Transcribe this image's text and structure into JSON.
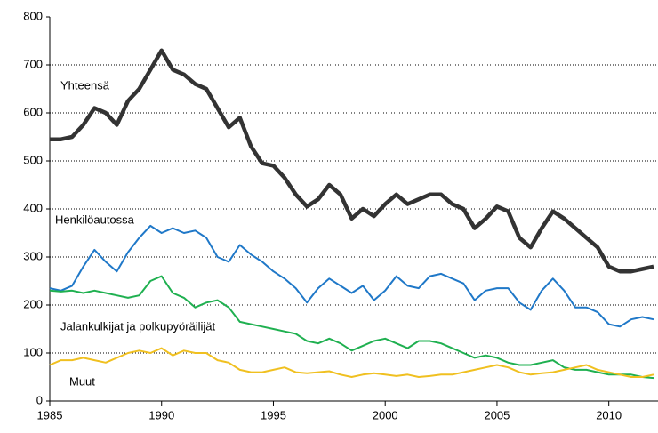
{
  "chart_data": {
    "type": "line",
    "x": [
      1985,
      1985.5,
      1986,
      1986.5,
      1987,
      1987.5,
      1988,
      1988.5,
      1989,
      1989.5,
      1990,
      1990.5,
      1991,
      1991.5,
      1992,
      1992.5,
      1993,
      1993.5,
      1994,
      1994.5,
      1995,
      1995.5,
      1996,
      1996.5,
      1997,
      1997.5,
      1998,
      1998.5,
      1999,
      1999.5,
      2000,
      2000.5,
      2001,
      2001.5,
      2002,
      2002.5,
      2003,
      2003.5,
      2004,
      2004.5,
      2005,
      2005.5,
      2006,
      2006.5,
      2007,
      2007.5,
      2008,
      2008.5,
      2009,
      2009.5,
      2010,
      2010.5,
      2011,
      2011.5,
      2012
    ],
    "series": [
      {
        "name": "Yhteensä",
        "color": "#333333",
        "values": [
          545,
          545,
          550,
          575,
          610,
          600,
          575,
          625,
          650,
          690,
          730,
          690,
          680,
          660,
          650,
          610,
          570,
          590,
          530,
          495,
          490,
          465,
          430,
          405,
          420,
          450,
          430,
          380,
          400,
          385,
          410,
          430,
          410,
          420,
          430,
          430,
          410,
          400,
          360,
          380,
          405,
          395,
          340,
          320,
          360,
          395,
          380,
          360,
          340,
          320,
          280,
          270,
          270,
          275,
          280
        ]
      },
      {
        "name": "Henkilöautossa",
        "color": "#1f78c8",
        "values": [
          235,
          230,
          240,
          280,
          315,
          290,
          270,
          310,
          340,
          365,
          350,
          360,
          350,
          355,
          340,
          300,
          290,
          325,
          305,
          290,
          270,
          255,
          235,
          205,
          235,
          255,
          240,
          225,
          240,
          210,
          230,
          260,
          240,
          235,
          260,
          265,
          255,
          245,
          210,
          230,
          235,
          235,
          205,
          190,
          230,
          255,
          230,
          195,
          195,
          185,
          160,
          155,
          170,
          175,
          170
        ]
      },
      {
        "name": "Jalankulkijat ja polkupyöräilijät",
        "color": "#1fb050",
        "values": [
          230,
          228,
          230,
          225,
          230,
          225,
          220,
          215,
          220,
          250,
          260,
          225,
          215,
          195,
          205,
          210,
          195,
          165,
          160,
          155,
          150,
          145,
          140,
          125,
          120,
          130,
          120,
          105,
          115,
          125,
          130,
          120,
          110,
          125,
          125,
          120,
          110,
          100,
          90,
          95,
          90,
          80,
          75,
          75,
          80,
          85,
          70,
          65,
          65,
          60,
          55,
          55,
          55,
          50,
          48
        ]
      },
      {
        "name": "Muut",
        "color": "#f0c020",
        "values": [
          75,
          85,
          85,
          90,
          85,
          80,
          90,
          100,
          105,
          100,
          110,
          95,
          105,
          100,
          100,
          85,
          80,
          65,
          60,
          60,
          65,
          70,
          60,
          58,
          60,
          62,
          55,
          50,
          55,
          58,
          55,
          52,
          55,
          50,
          52,
          55,
          55,
          60,
          65,
          70,
          75,
          70,
          60,
          55,
          58,
          60,
          65,
          70,
          75,
          65,
          60,
          55,
          50,
          50,
          55
        ]
      }
    ],
    "xlim": [
      1985,
      2012.2
    ],
    "xticks": [
      1985,
      1990,
      1995,
      2000,
      2005,
      2010
    ],
    "ylim": [
      0,
      800
    ],
    "yticks": [
      0,
      100,
      200,
      300,
      400,
      500,
      600,
      700,
      800
    ],
    "grid": true
  }
}
